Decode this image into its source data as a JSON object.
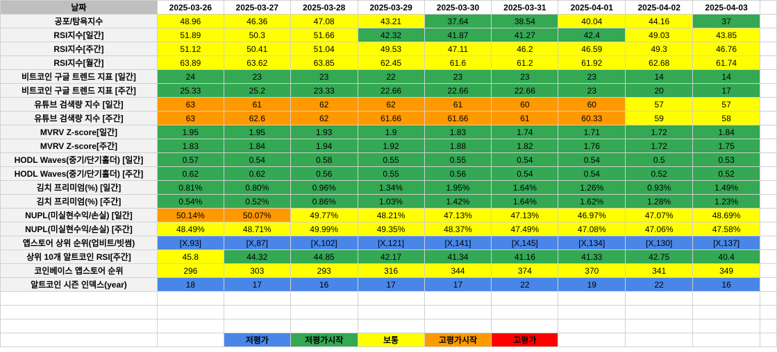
{
  "header": {
    "corner_label": "날짜",
    "dates": [
      "2025-03-26",
      "2025-03-27",
      "2025-03-28",
      "2025-03-29",
      "2025-03-30",
      "2025-03-31",
      "2025-04-01",
      "2025-04-02",
      "2025-04-03"
    ]
  },
  "rows": [
    {
      "label": "공포/탐욕지수",
      "cells": [
        {
          "v": "48.96",
          "c": "yellow"
        },
        {
          "v": "46.36",
          "c": "yellow"
        },
        {
          "v": "47.08",
          "c": "yellow"
        },
        {
          "v": "43.21",
          "c": "yellow"
        },
        {
          "v": "37.64",
          "c": "green"
        },
        {
          "v": "38.54",
          "c": "green"
        },
        {
          "v": "40.04",
          "c": "yellow"
        },
        {
          "v": "44.16",
          "c": "yellow"
        },
        {
          "v": "37",
          "c": "green"
        }
      ]
    },
    {
      "label": "RSI지수[일간]",
      "cells": [
        {
          "v": "51.89",
          "c": "yellow"
        },
        {
          "v": "50.3",
          "c": "yellow"
        },
        {
          "v": "51.66",
          "c": "yellow"
        },
        {
          "v": "42.32",
          "c": "green"
        },
        {
          "v": "41.87",
          "c": "green"
        },
        {
          "v": "41.27",
          "c": "green"
        },
        {
          "v": "42.4",
          "c": "green"
        },
        {
          "v": "49.03",
          "c": "yellow"
        },
        {
          "v": "43.85",
          "c": "yellow"
        }
      ]
    },
    {
      "label": "RSI지수[주간]",
      "cells": [
        {
          "v": "51.12",
          "c": "yellow"
        },
        {
          "v": "50.41",
          "c": "yellow"
        },
        {
          "v": "51.04",
          "c": "yellow"
        },
        {
          "v": "49.53",
          "c": "yellow"
        },
        {
          "v": "47.11",
          "c": "yellow"
        },
        {
          "v": "46.2",
          "c": "yellow"
        },
        {
          "v": "46.59",
          "c": "yellow"
        },
        {
          "v": "49.3",
          "c": "yellow"
        },
        {
          "v": "46.76",
          "c": "yellow"
        }
      ]
    },
    {
      "label": "RSI지수[월간]",
      "cells": [
        {
          "v": "63.89",
          "c": "yellow"
        },
        {
          "v": "63.62",
          "c": "yellow"
        },
        {
          "v": "63.85",
          "c": "yellow"
        },
        {
          "v": "62.45",
          "c": "yellow"
        },
        {
          "v": "61.6",
          "c": "yellow"
        },
        {
          "v": "61.2",
          "c": "yellow"
        },
        {
          "v": "61.92",
          "c": "yellow"
        },
        {
          "v": "62.68",
          "c": "yellow"
        },
        {
          "v": "61.74",
          "c": "yellow"
        }
      ]
    },
    {
      "label": "비트코인 구글 트렌드 지표 [일간]",
      "cells": [
        {
          "v": "24",
          "c": "green"
        },
        {
          "v": "23",
          "c": "green"
        },
        {
          "v": "23",
          "c": "green"
        },
        {
          "v": "22",
          "c": "green"
        },
        {
          "v": "23",
          "c": "green"
        },
        {
          "v": "23",
          "c": "green"
        },
        {
          "v": "23",
          "c": "green"
        },
        {
          "v": "14",
          "c": "green"
        },
        {
          "v": "14",
          "c": "green"
        }
      ]
    },
    {
      "label": "비트코인 구글 트렌드 지표 [주간]",
      "cells": [
        {
          "v": "25.33",
          "c": "green"
        },
        {
          "v": "25.2",
          "c": "green"
        },
        {
          "v": "23.33",
          "c": "green"
        },
        {
          "v": "22.66",
          "c": "green"
        },
        {
          "v": "22.66",
          "c": "green"
        },
        {
          "v": "22.66",
          "c": "green"
        },
        {
          "v": "23",
          "c": "green"
        },
        {
          "v": "20",
          "c": "green"
        },
        {
          "v": "17",
          "c": "green"
        }
      ]
    },
    {
      "label": "유튜브 검색량 지수 [일간]",
      "cells": [
        {
          "v": "63",
          "c": "orange"
        },
        {
          "v": "61",
          "c": "orange"
        },
        {
          "v": "62",
          "c": "orange"
        },
        {
          "v": "62",
          "c": "orange"
        },
        {
          "v": "61",
          "c": "orange"
        },
        {
          "v": "60",
          "c": "orange"
        },
        {
          "v": "60",
          "c": "orange"
        },
        {
          "v": "57",
          "c": "yellow"
        },
        {
          "v": "57",
          "c": "yellow"
        }
      ]
    },
    {
      "label": "유튜브 검색량 지수 [주간]",
      "cells": [
        {
          "v": "63",
          "c": "orange"
        },
        {
          "v": "62.6",
          "c": "orange"
        },
        {
          "v": "62",
          "c": "orange"
        },
        {
          "v": "61.66",
          "c": "orange"
        },
        {
          "v": "61.66",
          "c": "orange"
        },
        {
          "v": "61",
          "c": "orange"
        },
        {
          "v": "60.33",
          "c": "orange"
        },
        {
          "v": "59",
          "c": "yellow"
        },
        {
          "v": "58",
          "c": "yellow"
        }
      ]
    },
    {
      "label": "MVRV Z-score[일간]",
      "cells": [
        {
          "v": "1.95",
          "c": "green"
        },
        {
          "v": "1.95",
          "c": "green"
        },
        {
          "v": "1.93",
          "c": "green"
        },
        {
          "v": "1.9",
          "c": "green"
        },
        {
          "v": "1.83",
          "c": "green"
        },
        {
          "v": "1.74",
          "c": "green"
        },
        {
          "v": "1.71",
          "c": "green"
        },
        {
          "v": "1.72",
          "c": "green"
        },
        {
          "v": "1.84",
          "c": "green"
        }
      ]
    },
    {
      "label": "MVRV Z-score[주간]",
      "cells": [
        {
          "v": "1.83",
          "c": "green"
        },
        {
          "v": "1.84",
          "c": "green"
        },
        {
          "v": "1.94",
          "c": "green"
        },
        {
          "v": "1.92",
          "c": "green"
        },
        {
          "v": "1.88",
          "c": "green"
        },
        {
          "v": "1.82",
          "c": "green"
        },
        {
          "v": "1.76",
          "c": "green"
        },
        {
          "v": "1.72",
          "c": "green"
        },
        {
          "v": "1.75",
          "c": "green"
        }
      ]
    },
    {
      "label": "HODL Waves(중기/단기홀더) [일간]",
      "cells": [
        {
          "v": "0.57",
          "c": "green"
        },
        {
          "v": "0.54",
          "c": "green"
        },
        {
          "v": "0.58",
          "c": "green"
        },
        {
          "v": "0.55",
          "c": "green"
        },
        {
          "v": "0.55",
          "c": "green"
        },
        {
          "v": "0.54",
          "c": "green"
        },
        {
          "v": "0.54",
          "c": "green"
        },
        {
          "v": "0.5",
          "c": "green"
        },
        {
          "v": "0.53",
          "c": "green"
        }
      ]
    },
    {
      "label": "HODL Waves(중기/단기홀더) [주간]",
      "cells": [
        {
          "v": "0.62",
          "c": "green"
        },
        {
          "v": "0.62",
          "c": "green"
        },
        {
          "v": "0.56",
          "c": "green"
        },
        {
          "v": "0.55",
          "c": "green"
        },
        {
          "v": "0.56",
          "c": "green"
        },
        {
          "v": "0.54",
          "c": "green"
        },
        {
          "v": "0.54",
          "c": "green"
        },
        {
          "v": "0.52",
          "c": "green"
        },
        {
          "v": "0.52",
          "c": "green"
        }
      ]
    },
    {
      "label": "김치 프리미엄(%) [일간]",
      "cells": [
        {
          "v": "0.81%",
          "c": "green"
        },
        {
          "v": "0.80%",
          "c": "green"
        },
        {
          "v": "0.96%",
          "c": "green"
        },
        {
          "v": "1.34%",
          "c": "green"
        },
        {
          "v": "1.95%",
          "c": "green"
        },
        {
          "v": "1.64%",
          "c": "green"
        },
        {
          "v": "1.26%",
          "c": "green"
        },
        {
          "v": "0.93%",
          "c": "green"
        },
        {
          "v": "1.49%",
          "c": "green"
        }
      ]
    },
    {
      "label": "김치 프리미엄(%) [주간]",
      "cells": [
        {
          "v": "0.54%",
          "c": "green"
        },
        {
          "v": "0.52%",
          "c": "green"
        },
        {
          "v": "0.86%",
          "c": "green"
        },
        {
          "v": "1.03%",
          "c": "green"
        },
        {
          "v": "1.42%",
          "c": "green"
        },
        {
          "v": "1.64%",
          "c": "green"
        },
        {
          "v": "1.62%",
          "c": "green"
        },
        {
          "v": "1.28%",
          "c": "green"
        },
        {
          "v": "1.23%",
          "c": "green"
        }
      ]
    },
    {
      "label": "NUPL(미실현수익/손실) [일간]",
      "cells": [
        {
          "v": "50.14%",
          "c": "orange"
        },
        {
          "v": "50.07%",
          "c": "orange"
        },
        {
          "v": "49.77%",
          "c": "yellow"
        },
        {
          "v": "48.21%",
          "c": "yellow"
        },
        {
          "v": "47.13%",
          "c": "yellow"
        },
        {
          "v": "47.13%",
          "c": "yellow"
        },
        {
          "v": "46.97%",
          "c": "yellow"
        },
        {
          "v": "47.07%",
          "c": "yellow"
        },
        {
          "v": "48.69%",
          "c": "yellow"
        }
      ]
    },
    {
      "label": "NUPL(미실현수익/손실) [주간]",
      "cells": [
        {
          "v": "48.49%",
          "c": "yellow"
        },
        {
          "v": "48.71%",
          "c": "yellow"
        },
        {
          "v": "49.99%",
          "c": "yellow"
        },
        {
          "v": "49.35%",
          "c": "yellow"
        },
        {
          "v": "48.37%",
          "c": "yellow"
        },
        {
          "v": "47.49%",
          "c": "yellow"
        },
        {
          "v": "47.08%",
          "c": "yellow"
        },
        {
          "v": "47.06%",
          "c": "yellow"
        },
        {
          "v": "47.58%",
          "c": "yellow"
        }
      ]
    },
    {
      "label": "앱스토어 상위 순위(업비트/빗썸)",
      "cells": [
        {
          "v": "[X,93]",
          "c": "blue"
        },
        {
          "v": "[X,87]",
          "c": "blue"
        },
        {
          "v": "[X,102]",
          "c": "blue"
        },
        {
          "v": "[X,121]",
          "c": "blue"
        },
        {
          "v": "[X,141]",
          "c": "blue"
        },
        {
          "v": "[X,145]",
          "c": "blue"
        },
        {
          "v": "[X,134]",
          "c": "blue"
        },
        {
          "v": "[X,130]",
          "c": "blue"
        },
        {
          "v": "[X,137]",
          "c": "blue"
        }
      ]
    },
    {
      "label": "상위 10개 알트코인 RSI[주간]",
      "cells": [
        {
          "v": "45.8",
          "c": "yellow"
        },
        {
          "v": "44.32",
          "c": "green"
        },
        {
          "v": "44.85",
          "c": "green"
        },
        {
          "v": "42.17",
          "c": "green"
        },
        {
          "v": "41.34",
          "c": "green"
        },
        {
          "v": "41.16",
          "c": "green"
        },
        {
          "v": "41.33",
          "c": "green"
        },
        {
          "v": "42.75",
          "c": "green"
        },
        {
          "v": "40.4",
          "c": "green"
        }
      ]
    },
    {
      "label": "코인베이스 앱스토어 순위",
      "cells": [
        {
          "v": "296",
          "c": "yellow"
        },
        {
          "v": "303",
          "c": "yellow"
        },
        {
          "v": "293",
          "c": "yellow"
        },
        {
          "v": "316",
          "c": "yellow"
        },
        {
          "v": "344",
          "c": "yellow"
        },
        {
          "v": "374",
          "c": "yellow"
        },
        {
          "v": "370",
          "c": "yellow"
        },
        {
          "v": "341",
          "c": "yellow"
        },
        {
          "v": "349",
          "c": "yellow"
        }
      ]
    },
    {
      "label": "알트코인 시즌 인덱스(year)",
      "cells": [
        {
          "v": "18",
          "c": "blue"
        },
        {
          "v": "17",
          "c": "blue"
        },
        {
          "v": "16",
          "c": "blue"
        },
        {
          "v": "17",
          "c": "blue"
        },
        {
          "v": "17",
          "c": "blue"
        },
        {
          "v": "22",
          "c": "blue"
        },
        {
          "v": "19",
          "c": "blue"
        },
        {
          "v": "22",
          "c": "blue"
        },
        {
          "v": "16",
          "c": "blue"
        }
      ]
    }
  ],
  "legend": [
    {
      "label": "저평가",
      "c": "blue"
    },
    {
      "label": "저평가시작",
      "c": "green"
    },
    {
      "label": "보통",
      "c": "yellow"
    },
    {
      "label": "고평가시작",
      "c": "orange"
    },
    {
      "label": "고평가",
      "c": "red"
    }
  ],
  "colors": {
    "blue": "#4a86e8",
    "green": "#34a853",
    "yellow": "#ffff00",
    "orange": "#ff9900",
    "red": "#ff0000",
    "header_gray": "#bfbfbf"
  }
}
